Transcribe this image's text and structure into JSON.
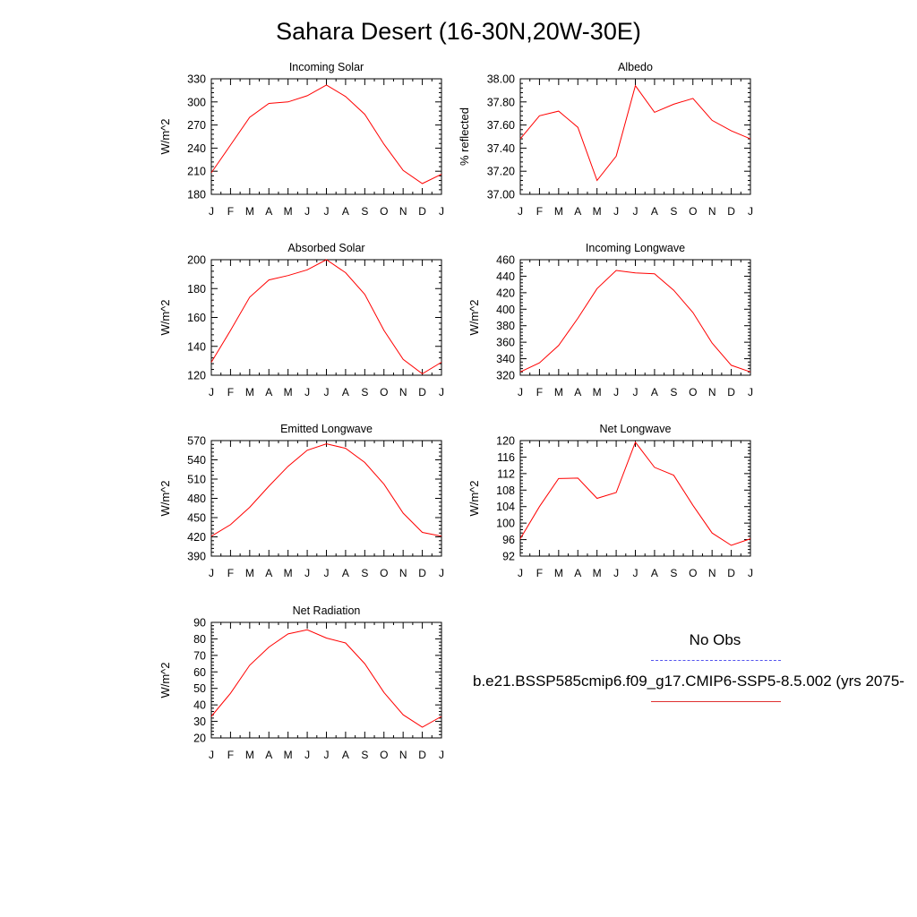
{
  "title": "Sahara Desert (16-30N,20W-30E)",
  "legend": {
    "obs_label": "No Obs",
    "case_label": "b.e21.BSSP585cmip6.f09_g17.CMIP6-SSP5-8.5.002 (yrs 2075-",
    "obs_color": "#5555ee",
    "case_color": "#ff0000"
  },
  "chart_data": [
    {
      "type": "line",
      "title": "Incoming Solar",
      "ylabel": "W/m^2",
      "categories": [
        "J",
        "F",
        "M",
        "A",
        "M",
        "J",
        "J",
        "A",
        "S",
        "O",
        "N",
        "D",
        "J"
      ],
      "ylim": [
        180,
        330
      ],
      "yticks": [
        "180",
        "210",
        "240",
        "270",
        "300",
        "330"
      ],
      "values": [
        208,
        244,
        280,
        298,
        300,
        308,
        322,
        307,
        284,
        245,
        211,
        194,
        206
      ]
    },
    {
      "type": "line",
      "title": "Albedo",
      "ylabel": "% reflected",
      "categories": [
        "J",
        "F",
        "M",
        "A",
        "M",
        "J",
        "J",
        "A",
        "S",
        "O",
        "N",
        "D",
        "J"
      ],
      "ylim": [
        37.0,
        38.0
      ],
      "yticks": [
        "37.00",
        "37.20",
        "37.40",
        "37.60",
        "37.80",
        "38.00"
      ],
      "values": [
        37.48,
        37.68,
        37.72,
        37.58,
        37.12,
        37.33,
        37.94,
        37.71,
        37.78,
        37.83,
        37.64,
        37.55,
        37.48
      ]
    },
    {
      "type": "line",
      "title": "Absorbed Solar",
      "ylabel": "W/m^2",
      "categories": [
        "J",
        "F",
        "M",
        "A",
        "M",
        "J",
        "J",
        "A",
        "S",
        "O",
        "N",
        "D",
        "J"
      ],
      "ylim": [
        120,
        200
      ],
      "yticks": [
        "120",
        "140",
        "160",
        "180",
        "200"
      ],
      "values": [
        129,
        151,
        174,
        186,
        189,
        193,
        200,
        191,
        176,
        151,
        131,
        121,
        129
      ]
    },
    {
      "type": "line",
      "title": "Incoming Longwave",
      "ylabel": "W/m^2",
      "categories": [
        "J",
        "F",
        "M",
        "A",
        "M",
        "J",
        "J",
        "A",
        "S",
        "O",
        "N",
        "D",
        "J"
      ],
      "ylim": [
        320,
        460
      ],
      "yticks": [
        "320",
        "340",
        "360",
        "380",
        "400",
        "420",
        "440",
        "460"
      ],
      "values": [
        324,
        335,
        356,
        389,
        425,
        447,
        444,
        443,
        423,
        396,
        359,
        332,
        324
      ]
    },
    {
      "type": "line",
      "title": "Emitted Longwave",
      "ylabel": "W/m^2",
      "categories": [
        "J",
        "F",
        "M",
        "A",
        "M",
        "J",
        "J",
        "A",
        "S",
        "O",
        "N",
        "D",
        "J"
      ],
      "ylim": [
        390,
        570
      ],
      "yticks": [
        "390",
        "420",
        "450",
        "480",
        "510",
        "540",
        "570"
      ],
      "values": [
        421,
        439,
        466,
        499,
        530,
        555,
        565,
        558,
        536,
        502,
        457,
        427,
        421
      ]
    },
    {
      "type": "line",
      "title": "Net Longwave",
      "ylabel": "W/m^2",
      "categories": [
        "J",
        "F",
        "M",
        "A",
        "M",
        "J",
        "J",
        "A",
        "S",
        "O",
        "N",
        "D",
        "J"
      ],
      "ylim": [
        92,
        120
      ],
      "yticks": [
        "92",
        "96",
        "100",
        "104",
        "108",
        "112",
        "116",
        "120"
      ],
      "values": [
        96.2,
        104,
        110.8,
        110.9,
        106,
        107.4,
        119.6,
        113.5,
        111.6,
        104.3,
        97.6,
        94.6,
        96.2
      ]
    },
    {
      "type": "line",
      "title": "Net Radiation",
      "ylabel": "W/m^2",
      "categories": [
        "J",
        "F",
        "M",
        "A",
        "M",
        "J",
        "J",
        "A",
        "S",
        "O",
        "N",
        "D",
        "J"
      ],
      "ylim": [
        20,
        90
      ],
      "yticks": [
        "20",
        "30",
        "40",
        "50",
        "60",
        "70",
        "80",
        "90"
      ],
      "values": [
        33,
        47,
        64,
        75,
        83,
        85.5,
        80.5,
        77.5,
        65,
        47.5,
        34,
        26.5,
        33
      ]
    }
  ]
}
